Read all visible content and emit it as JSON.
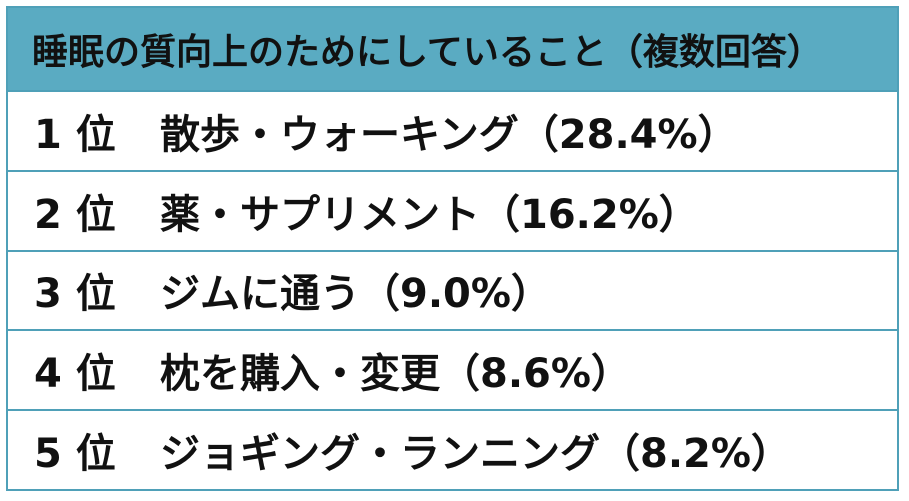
{
  "title": "睡眠の質向上のためにしていること（複数回答）",
  "rows": [
    {
      "rank": "1 位",
      "item": "散歩・ウォーキング（28.4%）"
    },
    {
      "rank": "2 位",
      "item": "薬・サプリメント（16.2%）"
    },
    {
      "rank": "3 位",
      "item": "ジムに通う（9.0%）"
    },
    {
      "rank": "4 位",
      "item": "枕を購入・変更（8.6%）"
    },
    {
      "rank": "5 位",
      "item": "ジョギング・ランニング（8.2%）"
    }
  ],
  "colors": {
    "header_bg": "#5aabc2",
    "border": "#4fa0b8"
  }
}
